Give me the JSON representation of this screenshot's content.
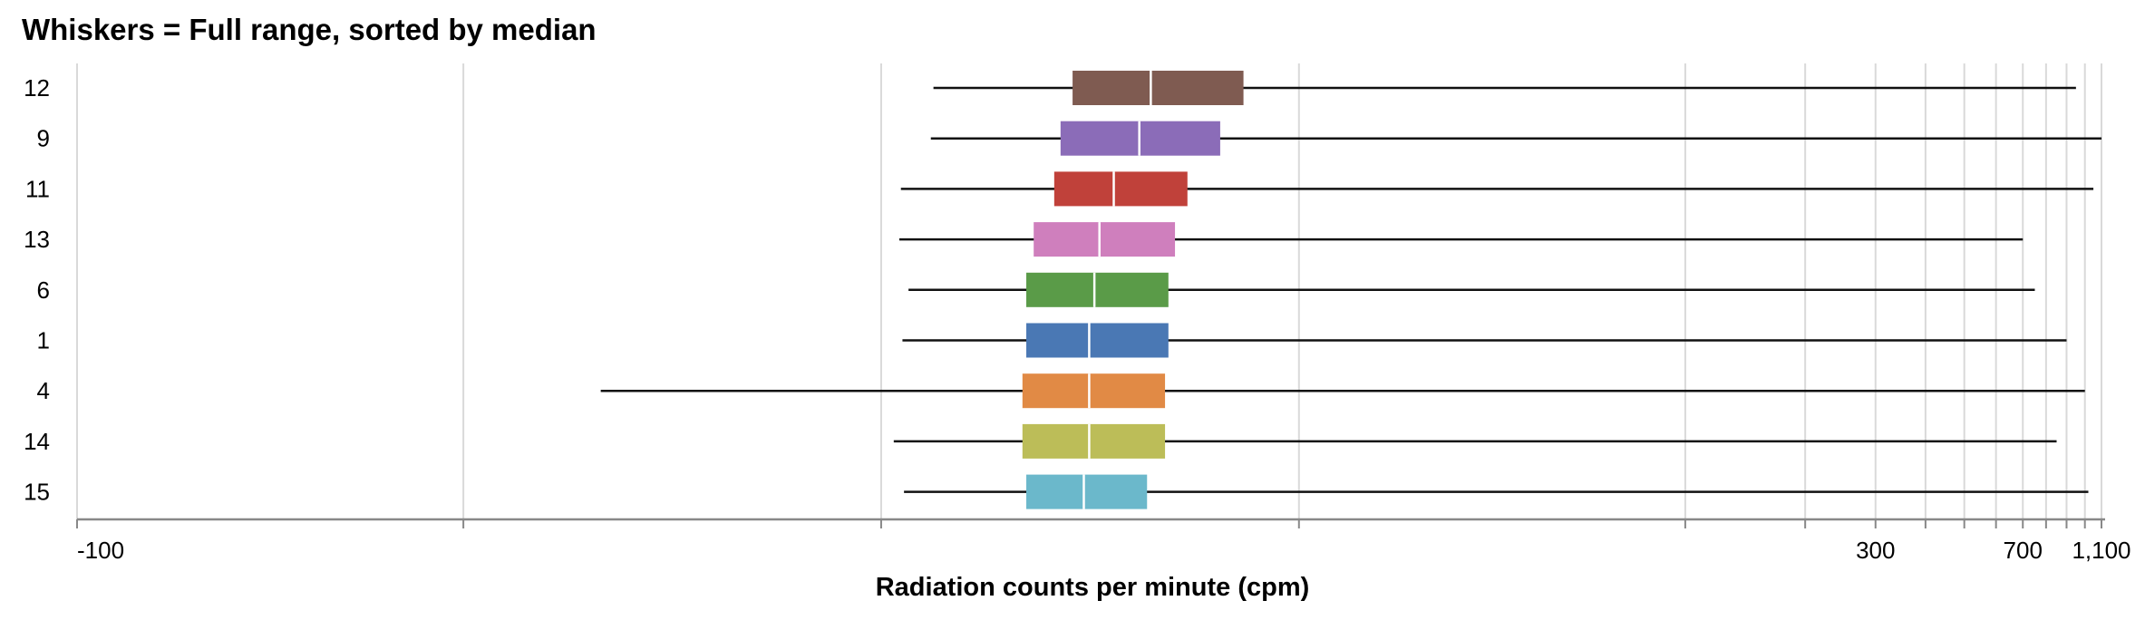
{
  "chart_data": {
    "type": "boxplot",
    "title": "Whiskers = Full range, sorted by median",
    "xlabel": "Radiation counts per minute (cpm)",
    "x_scale": "symlog",
    "xlim": [
      -100,
      1100
    ],
    "x_tick_labels": [
      {
        "value": -100,
        "label": "-100"
      },
      {
        "value": 300,
        "label": "300"
      },
      {
        "value": 700,
        "label": "700"
      },
      {
        "value": 1100,
        "label": "1,100"
      }
    ],
    "grid": true,
    "series": [
      {
        "category": "12",
        "color": "#7f5b51",
        "min": 0.35,
        "q1": 2.0,
        "median": 3.7,
        "q3": 7.0,
        "max": 950
      },
      {
        "category": "9",
        "color": "#8b6cb8",
        "min": 0.33,
        "q1": 1.8,
        "median": 3.4,
        "q3": 6.0,
        "max": 1100
      },
      {
        "category": "11",
        "color": "#c0413a",
        "min": 0.12,
        "q1": 1.7,
        "median": 2.8,
        "q3": 4.8,
        "max": 1050
      },
      {
        "category": "13",
        "color": "#cf7fbd",
        "min": 0.11,
        "q1": 1.4,
        "median": 2.5,
        "q3": 4.4,
        "max": 700
      },
      {
        "category": "6",
        "color": "#5a9b48",
        "min": 0.17,
        "q1": 1.3,
        "median": 2.4,
        "q3": 4.2,
        "max": 750
      },
      {
        "category": "1",
        "color": "#4a78b4",
        "min": 0.13,
        "q1": 1.3,
        "median": 2.3,
        "q3": 4.2,
        "max": 900
      },
      {
        "category": "4",
        "color": "#e18a45",
        "min": -4.0,
        "q1": 1.25,
        "median": 2.3,
        "q3": 4.1,
        "max": 1000
      },
      {
        "category": "14",
        "color": "#bcbd58",
        "min": 0.075,
        "q1": 1.25,
        "median": 2.3,
        "q3": 4.1,
        "max": 850
      },
      {
        "category": "15",
        "color": "#6bb8cb",
        "min": 0.14,
        "q1": 1.3,
        "median": 2.2,
        "q3": 3.6,
        "max": 1020
      }
    ]
  }
}
